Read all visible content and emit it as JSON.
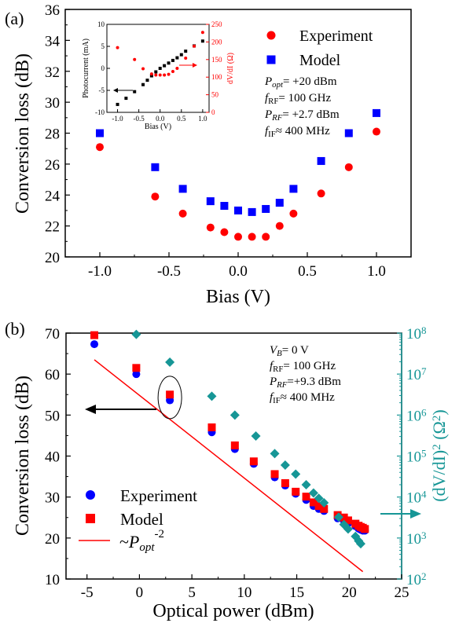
{
  "chart_data": [
    {
      "panel": "(a)",
      "type": "scatter",
      "xlabel": "Bias (V)",
      "ylabel": "Conversion loss (dB)",
      "xlim": [
        -1.25,
        1.25
      ],
      "ylim": [
        20,
        36
      ],
      "xticks": [
        "-1.0",
        "-0.5",
        "0.0",
        "0.5",
        "1.0"
      ],
      "yticks": [
        "20",
        "22",
        "24",
        "26",
        "28",
        "30",
        "32",
        "34",
        "36"
      ],
      "legend_position": "top-right",
      "series": [
        {
          "name": "Experiment",
          "marker": "circle",
          "color": "#ff0000",
          "x": [
            -1.0,
            -0.6,
            -0.4,
            -0.2,
            -0.1,
            0.0,
            0.1,
            0.2,
            0.3,
            0.4,
            0.6,
            0.8,
            1.0
          ],
          "y": [
            27.1,
            23.9,
            22.8,
            21.9,
            21.6,
            21.3,
            21.3,
            21.3,
            22.0,
            22.8,
            24.1,
            25.8,
            28.1
          ]
        },
        {
          "name": "Model",
          "marker": "square",
          "color": "#0000ff",
          "x": [
            -1.0,
            -0.6,
            -0.4,
            -0.2,
            -0.1,
            0.0,
            0.1,
            0.2,
            0.3,
            0.4,
            0.6,
            0.8,
            1.0
          ],
          "y": [
            28.0,
            25.8,
            24.4,
            23.6,
            23.3,
            23.0,
            22.9,
            23.1,
            23.5,
            24.4,
            26.2,
            28.0,
            29.3
          ]
        }
      ],
      "annotations": [
        {
          "parts": [
            {
              "t": "P",
              "i": true
            },
            {
              "t": "opt",
              "i": true,
              "sub": true
            },
            {
              "t": "= +20 dBm"
            }
          ]
        },
        {
          "parts": [
            {
              "t": "f",
              "i": true
            },
            {
              "t": "RF",
              "sub": true
            },
            {
              "t": "= 100 GHz"
            }
          ]
        },
        {
          "parts": [
            {
              "t": "P",
              "i": true
            },
            {
              "t": "RF",
              "i": true,
              "sub": true
            },
            {
              "t": "= +2.7 dBm"
            }
          ]
        },
        {
          "parts": [
            {
              "t": "f",
              "i": true
            },
            {
              "t": "IF",
              "sub": true
            },
            {
              "t": "≈ 400 MHz"
            }
          ]
        }
      ],
      "inset": {
        "type": "scatter",
        "xlabel": "Bias (V)",
        "ylabel_left": "Photocurrent (mA)",
        "ylabel_right": "dV/dI (Ω)",
        "xlim": [
          -1.25,
          1.15
        ],
        "ylim_left": [
          -10,
          10
        ],
        "ylim_right": [
          0,
          250
        ],
        "xticks": [
          "-1.0",
          "-0.5",
          "0.0",
          "0.5",
          "1.0"
        ],
        "yticks_left": [
          "-10",
          "-5",
          "0",
          "5",
          "10"
        ],
        "yticks_right": [
          "0",
          "50",
          "100",
          "150",
          "200",
          "250"
        ],
        "series": [
          {
            "name": "Photocurrent",
            "axis": "left",
            "marker": "square",
            "color": "#000000",
            "x": [
              -1.0,
              -0.8,
              -0.6,
              -0.4,
              -0.3,
              -0.2,
              -0.1,
              0.0,
              0.1,
              0.2,
              0.3,
              0.4,
              0.5,
              0.6,
              0.8,
              1.0
            ],
            "y": [
              -8.2,
              -6.8,
              -5.3,
              -3.7,
              -2.7,
              -1.7,
              -0.8,
              0.0,
              0.6,
              1.2,
              1.8,
              2.4,
              3.1,
              3.9,
              5.1,
              6.2
            ]
          },
          {
            "name": "dV/dI",
            "axis": "right",
            "marker": "circle",
            "color": "#ff0000",
            "x": [
              -1.0,
              -0.6,
              -0.4,
              -0.2,
              -0.1,
              0.0,
              0.1,
              0.2,
              0.3,
              0.4,
              0.6,
              0.8,
              1.0
            ],
            "y": [
              184,
              150,
              124,
              109,
              106,
              106,
              106,
              108,
              116,
              125,
              154,
              188,
              227
            ]
          }
        ]
      }
    },
    {
      "panel": "(b)",
      "type": "scatter",
      "xlabel": "Optical power (dBm)",
      "ylabel": "Conversion loss (dB)",
      "y2label": "(dV/dI)2 (Ω2)",
      "xlim": [
        -7,
        25
      ],
      "ylim": [
        10,
        70
      ],
      "y2lim_log10": [
        2,
        8
      ],
      "xticks": [
        "-5",
        "0",
        "5",
        "10",
        "15",
        "20",
        "25"
      ],
      "yticks": [
        "10",
        "20",
        "30",
        "40",
        "50",
        "60",
        "70"
      ],
      "y2ticks": [
        "10^2",
        "10^3",
        "10^4",
        "10^5",
        "10^6",
        "10^7",
        "10^8"
      ],
      "legend_position": "bottom-left",
      "series": [
        {
          "name": "Experiment",
          "axis": "left",
          "marker": "circle",
          "color": "#0000ff",
          "x": [
            -4.3,
            -0.3,
            2.9,
            6.9,
            9.1,
            10.9,
            12.9,
            13.9,
            14.9,
            15.9,
            16.6,
            17.1,
            17.6,
            18.9,
            19.5,
            19.9,
            20.6,
            20.9,
            21.1,
            21.3,
            21.5
          ],
          "y": [
            67.3,
            60.0,
            53.6,
            45.8,
            41.7,
            38.1,
            34.8,
            32.8,
            30.8,
            29.3,
            27.8,
            27.1,
            26.6,
            24.8,
            24.2,
            23.6,
            22.9,
            22.3,
            22.0,
            21.8,
            21.8
          ]
        },
        {
          "name": "Model",
          "axis": "left",
          "marker": "square",
          "color": "#ff0000",
          "x": [
            -4.3,
            -0.3,
            2.9,
            6.9,
            9.1,
            10.9,
            12.9,
            13.9,
            14.9,
            15.9,
            16.6,
            17.1,
            17.6,
            18.9,
            19.5,
            19.9,
            20.6,
            20.9,
            21.1,
            21.3,
            21.5
          ],
          "y": [
            69.5,
            61.5,
            55.0,
            47.0,
            42.6,
            38.7,
            35.6,
            33.4,
            31.3,
            30.1,
            28.7,
            27.8,
            27.1,
            25.6,
            25.0,
            24.3,
            23.5,
            23.0,
            22.7,
            22.5,
            22.2
          ]
        },
        {
          "name": "(dV/dI)^2",
          "axis": "right",
          "marker": "diamond",
          "color": "#169696",
          "x": [
            -0.3,
            2.9,
            6.9,
            9.1,
            11.1,
            12.9,
            13.9,
            14.9,
            15.9,
            16.6,
            17.1,
            17.6,
            19.0,
            19.5,
            19.9,
            20.6,
            20.9,
            21.1
          ],
          "y_log10": [
            7.97,
            7.29,
            6.46,
            6.0,
            5.49,
            5.06,
            4.78,
            4.56,
            4.3,
            4.1,
            3.97,
            3.86,
            3.51,
            3.33,
            3.22,
            3.04,
            2.93,
            2.86
          ]
        },
        {
          "name": "~P_opt^-2",
          "axis": "left",
          "type": "line",
          "color": "#ff0000",
          "x": [
            -4.3,
            21.3
          ],
          "y": [
            63.5,
            11.8
          ]
        }
      ],
      "legend": [
        {
          "label": "Experiment",
          "marker": "circle",
          "color": "#0000ff"
        },
        {
          "label": "Model",
          "marker": "square",
          "color": "#ff0000"
        }
      ],
      "line_legend": {
        "prefix": "~",
        "main": "P",
        "sub": "opt",
        "sup": "-2"
      },
      "annotations": [
        {
          "parts": [
            {
              "t": "V",
              "i": true
            },
            {
              "t": "B",
              "i": true,
              "sub": true
            },
            {
              "t": "= 0 V"
            }
          ]
        },
        {
          "parts": [
            {
              "t": "f",
              "i": true
            },
            {
              "t": "RF",
              "sub": true
            },
            {
              "t": "= 100 GHz"
            }
          ]
        },
        {
          "parts": [
            {
              "t": "P",
              "i": true
            },
            {
              "t": "RF",
              "i": true,
              "sub": true
            },
            {
              "t": "=+9.3 dBm"
            }
          ]
        },
        {
          "parts": [
            {
              "t": "f",
              "i": true
            },
            {
              "t": "IF",
              "sub": true
            },
            {
              "t": "≈ 400 MHz"
            }
          ]
        }
      ]
    }
  ]
}
